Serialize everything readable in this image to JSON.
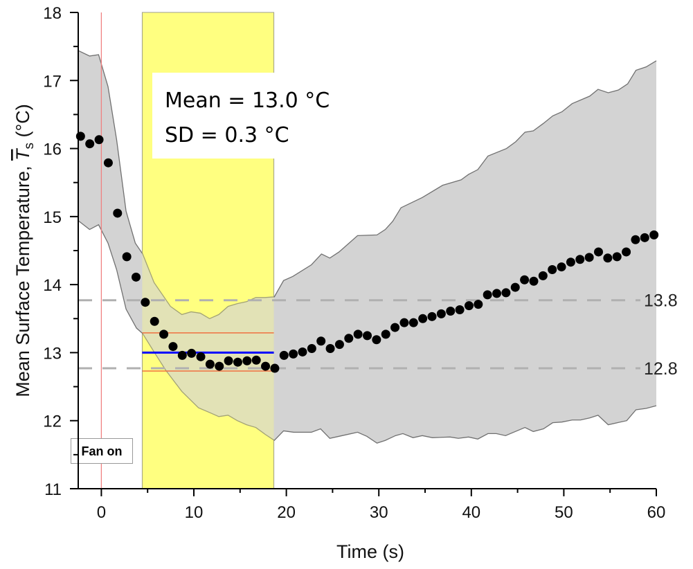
{
  "chart_data": {
    "type": "scatter",
    "xlabel": "Time (s)",
    "ylabel_prefix": "Mean Surface Temperature, ",
    "ylabel_symbol": "T",
    "ylabel_subscript": "s",
    "ylabel_suffix": " (°C)",
    "xlim": [
      -2.5,
      60
    ],
    "ylim": [
      11,
      18
    ],
    "x_ticks": [
      0,
      10,
      20,
      30,
      40,
      50,
      60
    ],
    "y_ticks": [
      11,
      12,
      13,
      14,
      15,
      16,
      17,
      18
    ],
    "grid": false,
    "points": {
      "x": [
        -2.25,
        -1.25,
        -0.25,
        0.75,
        1.75,
        2.75,
        3.75,
        4.75,
        5.75,
        6.75,
        7.75,
        8.75,
        9.75,
        10.75,
        11.75,
        12.75,
        13.75,
        14.75,
        15.75,
        16.75,
        17.75,
        18.75,
        19.75,
        20.75,
        21.75,
        22.75,
        23.75,
        24.75,
        25.75,
        26.75,
        27.75,
        28.75,
        29.75,
        30.75,
        31.75,
        32.75,
        33.75,
        34.75,
        35.75,
        36.75,
        37.75,
        38.75,
        39.75,
        40.75,
        41.75,
        42.75,
        43.75,
        44.75,
        45.75,
        46.75,
        47.75,
        48.75,
        49.75,
        50.75,
        51.75,
        52.75,
        53.75,
        54.75,
        55.75,
        56.75,
        57.75,
        58.75,
        59.75
      ],
      "y": [
        16.18,
        16.07,
        16.13,
        15.79,
        15.05,
        14.41,
        14.11,
        13.74,
        13.46,
        13.27,
        13.09,
        12.96,
        12.99,
        12.94,
        12.83,
        12.8,
        12.88,
        12.86,
        12.88,
        12.89,
        12.8,
        12.77,
        12.96,
        12.98,
        13.01,
        13.06,
        13.17,
        13.06,
        13.12,
        13.21,
        13.27,
        13.25,
        13.19,
        13.27,
        13.37,
        13.44,
        13.44,
        13.5,
        13.53,
        13.57,
        13.61,
        13.63,
        13.69,
        13.71,
        13.85,
        13.87,
        13.88,
        13.96,
        14.07,
        14.05,
        14.13,
        14.22,
        14.26,
        14.33,
        14.37,
        14.4,
        14.48,
        14.39,
        14.41,
        14.48,
        14.66,
        14.69,
        14.73
      ],
      "color": "#000000"
    },
    "band": {
      "color": "#d3d3d3",
      "edge_color": "#707070",
      "upper": [
        [
          -2.5,
          17.44
        ],
        [
          -1.27,
          17.36
        ],
        [
          -0.3,
          17.38
        ],
        [
          0.72,
          16.91
        ],
        [
          1.65,
          16.13
        ],
        [
          2.67,
          15.08
        ],
        [
          3.67,
          14.61
        ],
        [
          4.47,
          14.45
        ],
        [
          5.7,
          14.03
        ],
        [
          7.47,
          13.68
        ],
        [
          8.7,
          13.56
        ],
        [
          9.7,
          13.6
        ],
        [
          10.7,
          13.58
        ],
        [
          11.7,
          13.5
        ],
        [
          12.7,
          13.56
        ],
        [
          13.7,
          13.68
        ],
        [
          14.7,
          13.72
        ],
        [
          15.7,
          13.75
        ],
        [
          16.7,
          13.81
        ],
        [
          17.7,
          13.81
        ],
        [
          18.7,
          13.82
        ],
        [
          19.7,
          14.06
        ],
        [
          20.7,
          14.12
        ],
        [
          22.7,
          14.29
        ],
        [
          23.8,
          14.45
        ],
        [
          24.7,
          14.39
        ],
        [
          25.7,
          14.48
        ],
        [
          27.7,
          14.72
        ],
        [
          29.8,
          14.73
        ],
        [
          30.7,
          14.81
        ],
        [
          31.5,
          14.93
        ],
        [
          32.4,
          15.13
        ],
        [
          34.7,
          15.28
        ],
        [
          36.9,
          15.46
        ],
        [
          38.9,
          15.54
        ],
        [
          39.7,
          15.62
        ],
        [
          40.7,
          15.69
        ],
        [
          41.8,
          15.89
        ],
        [
          43.8,
          16.0
        ],
        [
          44.8,
          16.1
        ],
        [
          45.8,
          16.24
        ],
        [
          46.7,
          16.26
        ],
        [
          47.8,
          16.37
        ],
        [
          48.8,
          16.48
        ],
        [
          49.8,
          16.54
        ],
        [
          50.9,
          16.66
        ],
        [
          52.8,
          16.77
        ],
        [
          53.7,
          16.87
        ],
        [
          54.8,
          16.82
        ],
        [
          55.9,
          16.86
        ],
        [
          56.9,
          16.95
        ],
        [
          57.8,
          17.15
        ],
        [
          58.9,
          17.2
        ],
        [
          60,
          17.29
        ]
      ],
      "lower": [
        [
          -2.5,
          14.94
        ],
        [
          -1.27,
          14.81
        ],
        [
          -0.3,
          14.88
        ],
        [
          0.72,
          14.61
        ],
        [
          1.65,
          14.22
        ],
        [
          2.67,
          13.64
        ],
        [
          3.8,
          13.36
        ],
        [
          4.47,
          13.28
        ],
        [
          5.7,
          13.01
        ],
        [
          6.97,
          12.74
        ],
        [
          8.7,
          12.43
        ],
        [
          10.5,
          12.19
        ],
        [
          11.7,
          12.12
        ],
        [
          12.7,
          12.06
        ],
        [
          13.7,
          12.08
        ],
        [
          14.7,
          12.0
        ],
        [
          15.7,
          11.94
        ],
        [
          16.7,
          11.9
        ],
        [
          17.7,
          11.8
        ],
        [
          18.7,
          11.71
        ],
        [
          19.7,
          11.85
        ],
        [
          20.8,
          11.83
        ],
        [
          22.7,
          11.83
        ],
        [
          23.7,
          11.88
        ],
        [
          24.7,
          11.74
        ],
        [
          25.7,
          11.77
        ],
        [
          27.7,
          11.83
        ],
        [
          28.7,
          11.77
        ],
        [
          29.8,
          11.67
        ],
        [
          30.7,
          11.71
        ],
        [
          31.8,
          11.78
        ],
        [
          32.6,
          11.81
        ],
        [
          33.7,
          11.75
        ],
        [
          34.7,
          11.78
        ],
        [
          35.8,
          11.75
        ],
        [
          37.7,
          11.76
        ],
        [
          38.6,
          11.74
        ],
        [
          39.7,
          11.76
        ],
        [
          40.7,
          11.73
        ],
        [
          41.8,
          11.81
        ],
        [
          42.7,
          11.81
        ],
        [
          43.7,
          11.78
        ],
        [
          45.8,
          11.9
        ],
        [
          46.7,
          11.84
        ],
        [
          47.8,
          11.88
        ],
        [
          48.8,
          11.97
        ],
        [
          49.8,
          11.98
        ],
        [
          50.9,
          12.01
        ],
        [
          51.8,
          12.01
        ],
        [
          52.8,
          12.04
        ],
        [
          53.7,
          12.08
        ],
        [
          54.8,
          11.94
        ],
        [
          55.8,
          11.97
        ],
        [
          56.8,
          12.0
        ],
        [
          57.8,
          12.16
        ],
        [
          58.9,
          12.18
        ],
        [
          60,
          12.22
        ]
      ]
    },
    "highlight_window": {
      "x_start": 4.42,
      "x_end": 18.65,
      "color": "#ffff80"
    },
    "mean_line": {
      "y": 13.0,
      "color": "#0000ff"
    },
    "sd_lines": {
      "y": [
        13.29,
        12.73
      ],
      "color": "#f07040"
    },
    "fan_on_line": {
      "x": 0,
      "color": "#f08080"
    },
    "reference_lines": [
      {
        "y": 13.77,
        "label": "13.8",
        "color": "#b0b0b0"
      },
      {
        "y": 12.77,
        "label": "12.8",
        "color": "#b0b0b0"
      }
    ],
    "annotations": {
      "mean_text": "Mean = 13.0 °C",
      "sd_text": "SD = 0.3 °C",
      "fan_on": "Fan on"
    }
  }
}
